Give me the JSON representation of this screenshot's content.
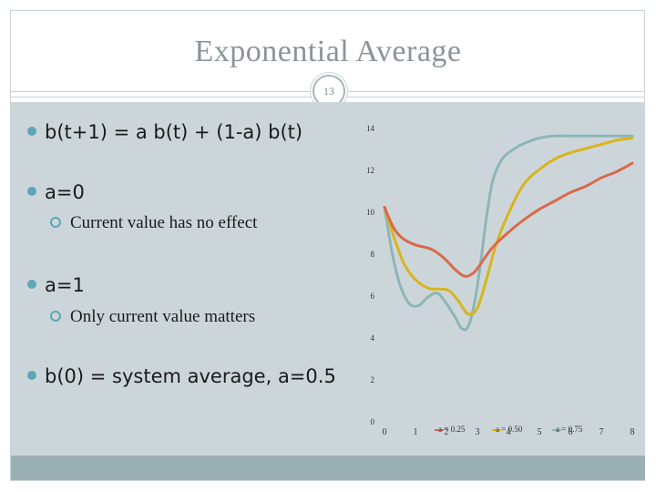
{
  "slide": {
    "title": "Exponential Average",
    "number": "13"
  },
  "bullets": [
    {
      "text": "b(t+1) = a b(t) + (1-a) b(t)"
    },
    {
      "text": "a=0"
    },
    {
      "text": "Current value has no effect"
    },
    {
      "text": "a=1"
    },
    {
      "text": "Only current value matters"
    },
    {
      "text": "b(0) = system average, a=0.5"
    }
  ],
  "colors": {
    "background_panel": "#ccd6da",
    "footer": "#9ab0b5",
    "bullet_accent": "#5fa6b6"
  },
  "chart_data": {
    "type": "line",
    "title": "",
    "xlabel": "",
    "ylabel": "",
    "xlim": [
      0,
      8
    ],
    "ylim": [
      0,
      14
    ],
    "x_ticks": [
      "0",
      "1",
      "2",
      "3",
      "4",
      "5",
      "6",
      "7",
      "8"
    ],
    "y_ticks": [
      "0",
      "2",
      "4",
      "6",
      "8",
      "10",
      "12",
      "14"
    ],
    "grid": false,
    "legend": "inline-bottom",
    "series": [
      {
        "name": "a = 0.25",
        "color": "#d9694a",
        "x": [
          0,
          0.3,
          0.6,
          1,
          1.5,
          1.9,
          2.3,
          2.6,
          2.9,
          3.2,
          3.5,
          4,
          4.5,
          5,
          5.5,
          6,
          6.5,
          7,
          7.5,
          8
        ],
        "y": [
          10.2,
          9.2,
          8.7,
          8.4,
          8.2,
          7.8,
          7.2,
          6.9,
          7.1,
          7.7,
          8.3,
          9.0,
          9.6,
          10.1,
          10.5,
          10.9,
          11.2,
          11.6,
          11.9,
          12.3
        ]
      },
      {
        "name": "a = 0.50",
        "color": "#d9b41c",
        "x": [
          0,
          0.3,
          0.6,
          0.9,
          1.2,
          1.5,
          1.8,
          2.1,
          2.4,
          2.7,
          3.0,
          3.3,
          3.6,
          4.0,
          4.5,
          5,
          5.5,
          6,
          6.5,
          7,
          7.5,
          8
        ],
        "y": [
          10.2,
          8.8,
          7.6,
          6.9,
          6.5,
          6.3,
          6.3,
          6.2,
          5.7,
          5.1,
          5.4,
          6.8,
          8.4,
          9.9,
          11.3,
          12.0,
          12.5,
          12.8,
          13.0,
          13.2,
          13.4,
          13.5
        ]
      },
      {
        "name": "a = 0.75",
        "color": "#8db5b8",
        "x": [
          0,
          0.25,
          0.5,
          0.8,
          1.1,
          1.4,
          1.7,
          2.0,
          2.3,
          2.5,
          2.7,
          2.9,
          3.1,
          3.3,
          3.5,
          3.8,
          4.2,
          4.6,
          5,
          5.5,
          6,
          7,
          8
        ],
        "y": [
          10.2,
          8.0,
          6.5,
          5.6,
          5.5,
          5.9,
          6.1,
          5.6,
          4.9,
          4.4,
          4.5,
          5.6,
          7.5,
          9.8,
          11.5,
          12.5,
          13.0,
          13.3,
          13.5,
          13.6,
          13.6,
          13.6,
          13.6
        ]
      }
    ]
  }
}
